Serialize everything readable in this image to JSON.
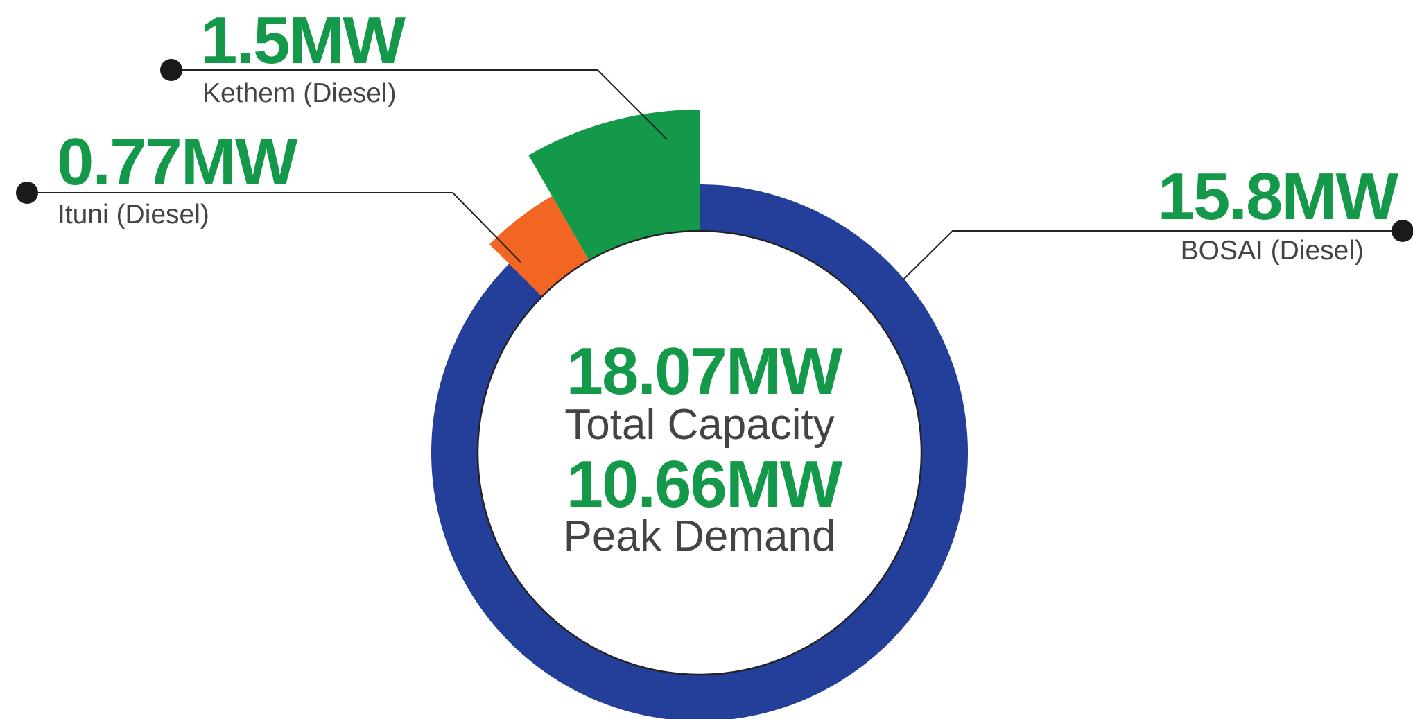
{
  "chart_data": {
    "type": "donut",
    "categories": [
      "BOSAI (Diesel)",
      "Ituni (Diesel)",
      "Kethem (Diesel)"
    ],
    "values": [
      15.8,
      0.77,
      1.5
    ],
    "value_labels": [
      "15.8MW",
      "0.77MW",
      "1.5MW"
    ],
    "colors": [
      "#233f99",
      "#f26522",
      "#14994a"
    ],
    "annotations": [
      {
        "value": "18.07MW",
        "label": "Total Capacity"
      },
      {
        "value": "10.66MW",
        "label": "Peak Demand"
      }
    ]
  }
}
